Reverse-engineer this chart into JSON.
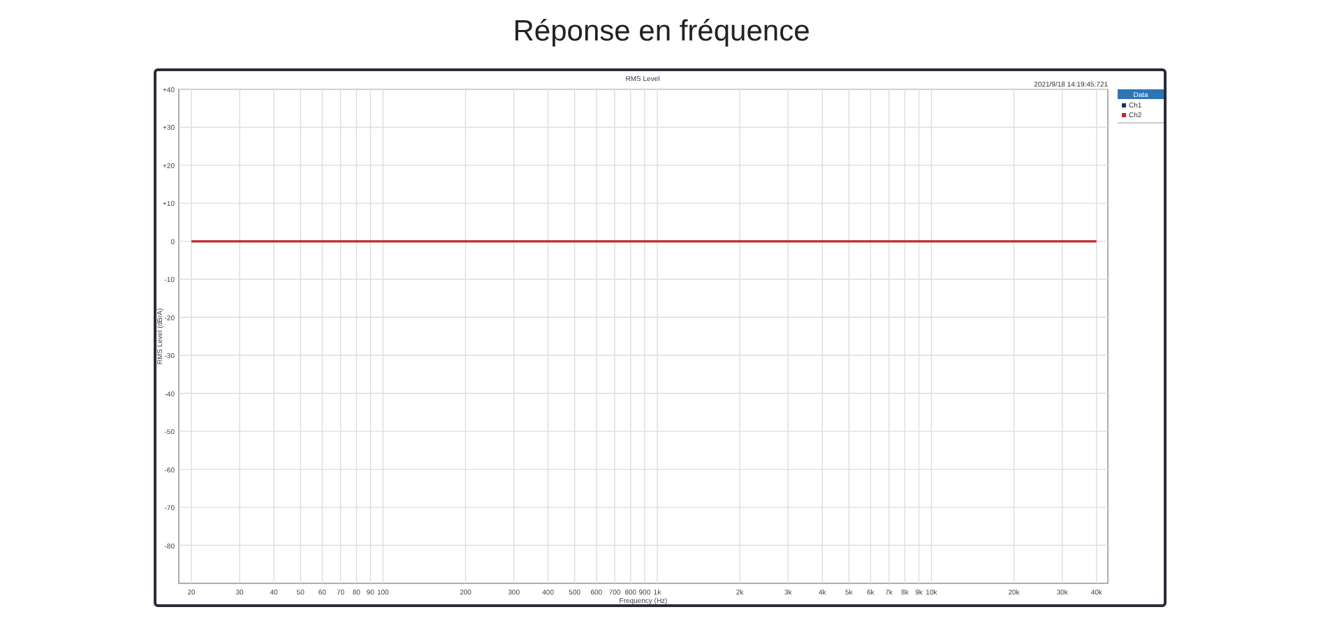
{
  "chart_data": {
    "type": "line",
    "title": "Réponse en fréquence",
    "subtitle": "RMS Level",
    "xlabel": "Frequency (Hz)",
    "ylabel": "RMS Level (dBrA)",
    "legend_title": "Data",
    "annotations": [
      "2021/9/18 14:19:45:721"
    ],
    "log": "x",
    "grid": true,
    "legend": "right",
    "marker": "none",
    "line_style": "solid",
    "xlim": [
      18,
      44000
    ],
    "ylim": [
      -90,
      40
    ],
    "xticks": [
      {
        "value": 20,
        "label": "20"
      },
      {
        "value": 30,
        "label": "30"
      },
      {
        "value": 40,
        "label": "40"
      },
      {
        "value": 50,
        "label": "50"
      },
      {
        "value": 60,
        "label": "60"
      },
      {
        "value": 70,
        "label": "70"
      },
      {
        "value": 80,
        "label": "80"
      },
      {
        "value": 90,
        "label": "90"
      },
      {
        "value": 100,
        "label": "100"
      },
      {
        "value": 200,
        "label": "200"
      },
      {
        "value": 300,
        "label": "300"
      },
      {
        "value": 400,
        "label": "400"
      },
      {
        "value": 500,
        "label": "500"
      },
      {
        "value": 600,
        "label": "600"
      },
      {
        "value": 700,
        "label": "700"
      },
      {
        "value": 800,
        "label": "800"
      },
      {
        "value": 900,
        "label": "900"
      },
      {
        "value": 1000,
        "label": "1k"
      },
      {
        "value": 2000,
        "label": "2k"
      },
      {
        "value": 3000,
        "label": "3k"
      },
      {
        "value": 4000,
        "label": "4k"
      },
      {
        "value": 5000,
        "label": "5k"
      },
      {
        "value": 6000,
        "label": "6k"
      },
      {
        "value": 7000,
        "label": "7k"
      },
      {
        "value": 8000,
        "label": "8k"
      },
      {
        "value": 9000,
        "label": "9k"
      },
      {
        "value": 10000,
        "label": "10k"
      },
      {
        "value": 20000,
        "label": "20k"
      },
      {
        "value": 30000,
        "label": "30k"
      },
      {
        "value": 40000,
        "label": "40k"
      }
    ],
    "yticks": [
      {
        "value": 40,
        "label": "+40"
      },
      {
        "value": 30,
        "label": "+30"
      },
      {
        "value": 20,
        "label": "+20"
      },
      {
        "value": 10,
        "label": "+10"
      },
      0,
      -10,
      -20,
      -30,
      -40,
      -50,
      -60,
      -70,
      -80
    ],
    "x": [
      20,
      40000
    ],
    "series": [
      {
        "name": "Ch1",
        "color": "#1f2a6b",
        "values": [
          null,
          null
        ]
      },
      {
        "name": "Ch2",
        "color": "#c0282d",
        "values": [
          0,
          0
        ]
      }
    ]
  }
}
